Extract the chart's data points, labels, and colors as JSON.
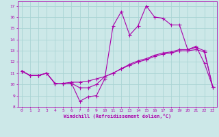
{
  "xlabel": "Windchill (Refroidissement éolien,°C)",
  "bg_color": "#cce8e8",
  "line_color": "#aa00aa",
  "grid_color": "#aad4d4",
  "xlim": [
    -0.5,
    23.5
  ],
  "ylim": [
    8,
    17.4
  ],
  "xticks": [
    0,
    1,
    2,
    3,
    4,
    5,
    6,
    7,
    8,
    9,
    10,
    11,
    12,
    13,
    14,
    15,
    16,
    17,
    18,
    19,
    20,
    21,
    22,
    23
  ],
  "yticks": [
    8,
    9,
    10,
    11,
    12,
    13,
    14,
    15,
    16,
    17
  ],
  "line1_x": [
    0,
    1,
    2,
    3,
    4,
    5,
    6,
    7,
    8,
    9,
    10,
    11,
    12,
    13,
    14,
    15,
    16,
    17,
    18,
    19,
    20,
    21,
    22,
    23
  ],
  "line1_y": [
    11.2,
    10.8,
    10.8,
    11.0,
    10.1,
    10.1,
    10.1,
    8.5,
    8.9,
    9.0,
    10.5,
    15.2,
    16.5,
    14.4,
    15.2,
    17.0,
    16.0,
    15.9,
    15.3,
    15.3,
    13.1,
    13.4,
    11.9,
    9.8
  ],
  "line2_x": [
    0,
    1,
    2,
    3,
    4,
    5,
    6,
    7,
    8,
    9,
    10,
    11,
    12,
    13,
    14,
    15,
    16,
    17,
    18,
    19,
    20,
    21,
    22,
    23
  ],
  "line2_y": [
    11.2,
    10.8,
    10.8,
    11.0,
    10.1,
    10.1,
    10.1,
    9.7,
    9.7,
    10.0,
    10.7,
    11.0,
    11.4,
    11.8,
    12.1,
    12.3,
    12.6,
    12.8,
    12.9,
    13.1,
    13.1,
    13.3,
    13.0,
    9.8
  ],
  "line3_x": [
    0,
    1,
    2,
    3,
    4,
    5,
    6,
    7,
    8,
    9,
    10,
    11,
    12,
    13,
    14,
    15,
    16,
    17,
    18,
    19,
    20,
    21,
    22,
    23
  ],
  "line3_y": [
    11.2,
    10.8,
    10.8,
    11.0,
    10.1,
    10.1,
    10.2,
    10.2,
    10.3,
    10.5,
    10.7,
    11.0,
    11.4,
    11.7,
    12.0,
    12.2,
    12.5,
    12.7,
    12.8,
    13.0,
    13.0,
    13.1,
    12.9,
    9.8
  ]
}
